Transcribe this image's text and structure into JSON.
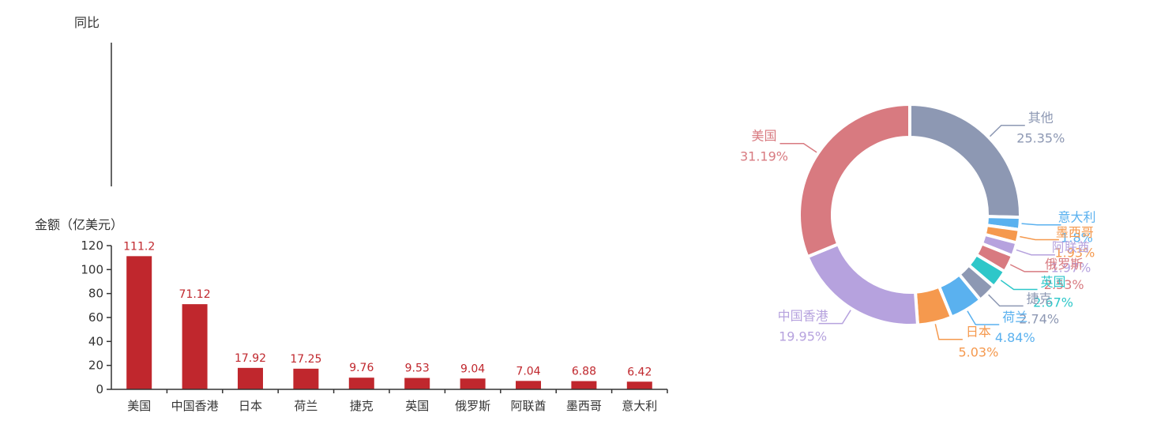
{
  "chart_data": [
    {
      "type": "line",
      "ylabel": "同比",
      "series": []
    },
    {
      "type": "bar",
      "ylabel": "金额（亿美元）",
      "categories": [
        "美国",
        "中国香港",
        "日本",
        "荷兰",
        "捷克",
        "英国",
        "俄罗斯",
        "阿联酋",
        "墨西哥",
        "意大利"
      ],
      "values": [
        111.2,
        71.12,
        17.92,
        17.25,
        9.76,
        9.53,
        9.04,
        7.04,
        6.88,
        6.42
      ],
      "value_labels": [
        "111.2",
        "71.12",
        "17.92",
        "17.25",
        "9.76",
        "9.53",
        "9.04",
        "7.04",
        "6.88",
        "6.42"
      ],
      "ylim": [
        0,
        120
      ],
      "yticks": [
        0,
        20,
        40,
        60,
        80,
        100,
        120
      ],
      "bar_color": "#c0272d",
      "grid": false
    },
    {
      "type": "pie",
      "donut": true,
      "slices": [
        {
          "name": "其他",
          "value": 25.35,
          "label": "25.35%",
          "color": "#8d98b3"
        },
        {
          "name": "意大利",
          "value": 1.8,
          "label": "1.8%",
          "color": "#5ab1ef"
        },
        {
          "name": "墨西哥",
          "value": 1.93,
          "label": "1.93%",
          "color": "#f5994e"
        },
        {
          "name": "阿联酋",
          "value": 1.97,
          "label": "1.97%",
          "color": "#b6a2de"
        },
        {
          "name": "俄罗斯",
          "value": 2.53,
          "label": "2.53%",
          "color": "#d87a80"
        },
        {
          "name": "英国",
          "value": 2.67,
          "label": "2.67%",
          "color": "#2ec7c9"
        },
        {
          "name": "捷克",
          "value": 2.74,
          "label": "2.74%",
          "color": "#8d98b3"
        },
        {
          "name": "荷兰",
          "value": 4.84,
          "label": "4.84%",
          "color": "#5ab1ef"
        },
        {
          "name": "日本",
          "value": 5.03,
          "label": "5.03%",
          "color": "#f5994e"
        },
        {
          "name": "中国香港",
          "value": 19.95,
          "label": "19.95%",
          "color": "#b6a2de"
        },
        {
          "name": "美国",
          "value": 31.19,
          "label": "31.19%",
          "color": "#d87a80"
        }
      ]
    }
  ]
}
